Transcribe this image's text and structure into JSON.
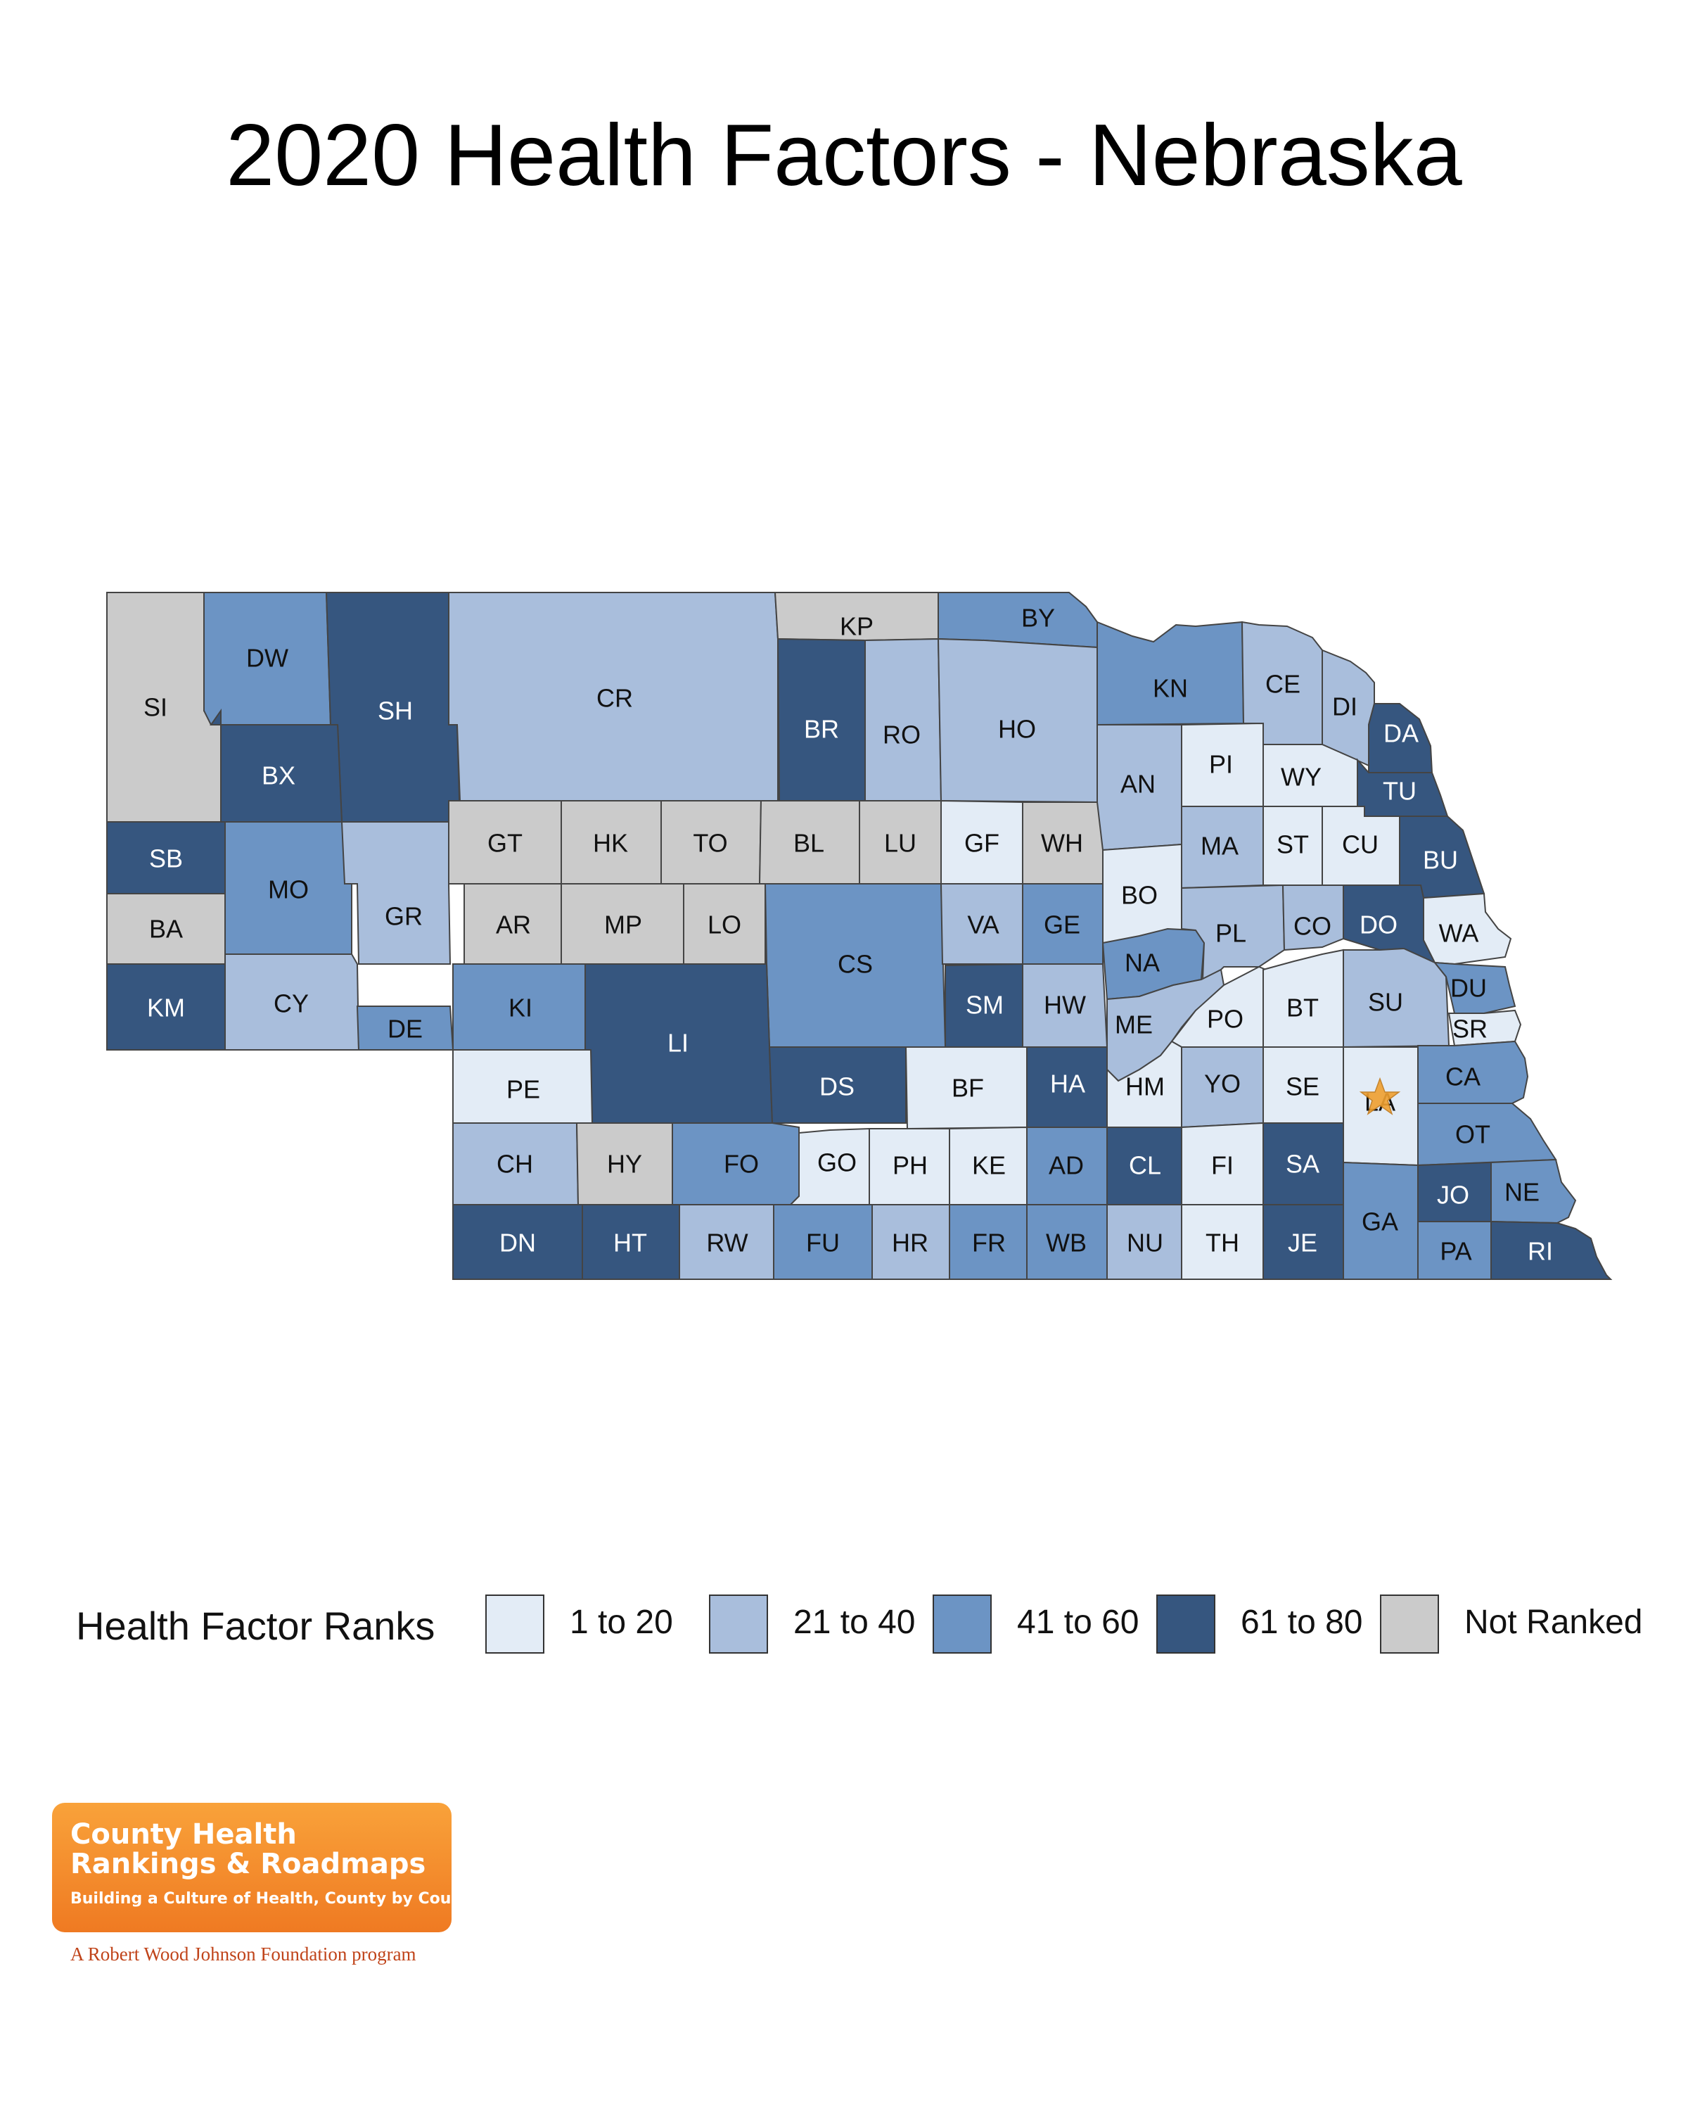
{
  "title": "2020 Health Factors - Nebraska",
  "legend": {
    "title": "Health Factor Ranks",
    "items": [
      {
        "label": "1 to 20",
        "color": "#e3ecf6"
      },
      {
        "label": "21 to 40",
        "color": "#a9bedc"
      },
      {
        "label": "41 to 60",
        "color": "#6c94c4"
      },
      {
        "label": "61 to 80",
        "color": "#36567f"
      },
      {
        "label": "Not Ranked",
        "color": "#cbcbcb"
      }
    ]
  },
  "counties": [
    {
      "abbr": "SI",
      "rank": "Not Ranked"
    },
    {
      "abbr": "DW",
      "rank": "41 to 60"
    },
    {
      "abbr": "SH",
      "rank": "61 to 80"
    },
    {
      "abbr": "CR",
      "rank": "21 to 40"
    },
    {
      "abbr": "KP",
      "rank": "Not Ranked"
    },
    {
      "abbr": "BY",
      "rank": "41 to 60"
    },
    {
      "abbr": "BX",
      "rank": "61 to 80"
    },
    {
      "abbr": "BR",
      "rank": "61 to 80"
    },
    {
      "abbr": "RO",
      "rank": "21 to 40"
    },
    {
      "abbr": "HO",
      "rank": "21 to 40"
    },
    {
      "abbr": "KN",
      "rank": "41 to 60"
    },
    {
      "abbr": "CE",
      "rank": "21 to 40"
    },
    {
      "abbr": "DI",
      "rank": "21 to 40"
    },
    {
      "abbr": "DA",
      "rank": "61 to 80"
    },
    {
      "abbr": "SB",
      "rank": "61 to 80"
    },
    {
      "abbr": "BA",
      "rank": "Not Ranked"
    },
    {
      "abbr": "KM",
      "rank": "61 to 80"
    },
    {
      "abbr": "MO",
      "rank": "41 to 60"
    },
    {
      "abbr": "CY",
      "rank": "21 to 40"
    },
    {
      "abbr": "GR",
      "rank": "21 to 40"
    },
    {
      "abbr": "DE",
      "rank": "41 to 60"
    },
    {
      "abbr": "GT",
      "rank": "Not Ranked"
    },
    {
      "abbr": "HK",
      "rank": "Not Ranked"
    },
    {
      "abbr": "TO",
      "rank": "Not Ranked"
    },
    {
      "abbr": "BL",
      "rank": "Not Ranked"
    },
    {
      "abbr": "LU",
      "rank": "Not Ranked"
    },
    {
      "abbr": "GF",
      "rank": "1 to 20"
    },
    {
      "abbr": "WH",
      "rank": "Not Ranked"
    },
    {
      "abbr": "AN",
      "rank": "21 to 40"
    },
    {
      "abbr": "PI",
      "rank": "1 to 20"
    },
    {
      "abbr": "WY",
      "rank": "1 to 20"
    },
    {
      "abbr": "TU",
      "rank": "61 to 80"
    },
    {
      "abbr": "AR",
      "rank": "Not Ranked"
    },
    {
      "abbr": "MP",
      "rank": "Not Ranked"
    },
    {
      "abbr": "LO",
      "rank": "Not Ranked"
    },
    {
      "abbr": "CS",
      "rank": "41 to 60"
    },
    {
      "abbr": "VA",
      "rank": "21 to 40"
    },
    {
      "abbr": "GE",
      "rank": "41 to 60"
    },
    {
      "abbr": "BO",
      "rank": "1 to 20"
    },
    {
      "abbr": "MA",
      "rank": "21 to 40"
    },
    {
      "abbr": "ST",
      "rank": "1 to 20"
    },
    {
      "abbr": "CU",
      "rank": "1 to 20"
    },
    {
      "abbr": "BU",
      "rank": "61 to 80"
    },
    {
      "abbr": "KI",
      "rank": "41 to 60"
    },
    {
      "abbr": "LI",
      "rank": "61 to 80"
    },
    {
      "abbr": "SM",
      "rank": "61 to 80"
    },
    {
      "abbr": "HW",
      "rank": "21 to 40"
    },
    {
      "abbr": "NA",
      "rank": "41 to 60"
    },
    {
      "abbr": "PL",
      "rank": "21 to 40"
    },
    {
      "abbr": "CO",
      "rank": "21 to 40"
    },
    {
      "abbr": "DO",
      "rank": "61 to 80"
    },
    {
      "abbr": "WA",
      "rank": "1 to 20"
    },
    {
      "abbr": "ME",
      "rank": "21 to 40"
    },
    {
      "abbr": "PO",
      "rank": "1 to 20"
    },
    {
      "abbr": "BT",
      "rank": "1 to 20"
    },
    {
      "abbr": "SU",
      "rank": "21 to 40"
    },
    {
      "abbr": "DU",
      "rank": "41 to 60"
    },
    {
      "abbr": "SR",
      "rank": "1 to 20"
    },
    {
      "abbr": "PE",
      "rank": "1 to 20"
    },
    {
      "abbr": "DS",
      "rank": "61 to 80"
    },
    {
      "abbr": "BF",
      "rank": "1 to 20"
    },
    {
      "abbr": "HA",
      "rank": "61 to 80"
    },
    {
      "abbr": "HM",
      "rank": "1 to 20"
    },
    {
      "abbr": "YO",
      "rank": "21 to 40"
    },
    {
      "abbr": "SE",
      "rank": "1 to 20"
    },
    {
      "abbr": "LA",
      "rank": "1 to 20"
    },
    {
      "abbr": "CA",
      "rank": "41 to 60"
    },
    {
      "abbr": "OT",
      "rank": "41 to 60"
    },
    {
      "abbr": "CH",
      "rank": "21 to 40"
    },
    {
      "abbr": "HY",
      "rank": "Not Ranked"
    },
    {
      "abbr": "FO",
      "rank": "41 to 60"
    },
    {
      "abbr": "GO",
      "rank": "1 to 20"
    },
    {
      "abbr": "PH",
      "rank": "1 to 20"
    },
    {
      "abbr": "KE",
      "rank": "1 to 20"
    },
    {
      "abbr": "AD",
      "rank": "41 to 60"
    },
    {
      "abbr": "CL",
      "rank": "61 to 80"
    },
    {
      "abbr": "FI",
      "rank": "1 to 20"
    },
    {
      "abbr": "SA",
      "rank": "61 to 80"
    },
    {
      "abbr": "JO",
      "rank": "61 to 80"
    },
    {
      "abbr": "NE",
      "rank": "41 to 60"
    },
    {
      "abbr": "DN",
      "rank": "61 to 80"
    },
    {
      "abbr": "HT",
      "rank": "61 to 80"
    },
    {
      "abbr": "RW",
      "rank": "21 to 40"
    },
    {
      "abbr": "FU",
      "rank": "41 to 60"
    },
    {
      "abbr": "HR",
      "rank": "21 to 40"
    },
    {
      "abbr": "FR",
      "rank": "41 to 60"
    },
    {
      "abbr": "WB",
      "rank": "41 to 60"
    },
    {
      "abbr": "NU",
      "rank": "21 to 40"
    },
    {
      "abbr": "TH",
      "rank": "1 to 20"
    },
    {
      "abbr": "JE",
      "rank": "61 to 80"
    },
    {
      "abbr": "GA",
      "rank": "41 to 60"
    },
    {
      "abbr": "PA",
      "rank": "41 to 60"
    },
    {
      "abbr": "RI",
      "rank": "61 to 80"
    }
  ],
  "marker": {
    "county": "LA",
    "icon": "star-icon",
    "color": "#f0a030"
  },
  "logo": {
    "line1": "County Health",
    "line2": "Rankings & Roadmaps",
    "tagline": "Building a Culture of Health, County by County",
    "sub": "A Robert Wood Johnson Foundation program"
  }
}
